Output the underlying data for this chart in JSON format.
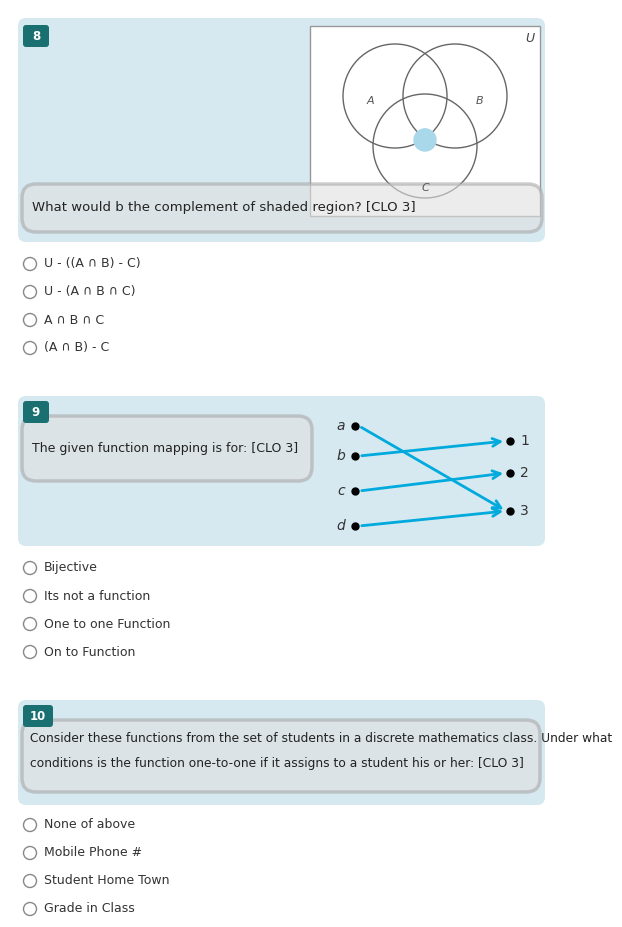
{
  "bg_color": "#ffffff",
  "light_blue_bg": "#d6e8f0",
  "teal_badge": "#1a7070",
  "arrow_color": "#00aadd",
  "q8_number": "8",
  "q8_question": "What would b the complement of shaded region? [CLO 3]",
  "q8_options": [
    "U - ((A ∩ B) - C)",
    "U - (A ∩ B ∩ C)",
    "A ∩ B ∩ C",
    "(A ∩ B) - C"
  ],
  "q9_number": "9",
  "q9_question": "The given function mapping is for: [CLO 3]",
  "q9_options": [
    "Bijective",
    "Its not a function",
    "One to one Function",
    "On to Function"
  ],
  "q10_number": "10",
  "q10_question": "Consider these functions from the set of students in a discrete mathematics class. Under what\nconditions is the function one-to-one if it assigns to a student his or her: [CLO 3]",
  "q10_options": [
    "None of above",
    "Mobile Phone #",
    "Student Home Town",
    "Grade in Class"
  ],
  "arrow_mappings": [
    [
      "a",
      3
    ],
    [
      "b",
      1
    ],
    [
      "c",
      2
    ],
    [
      "d",
      3
    ]
  ]
}
